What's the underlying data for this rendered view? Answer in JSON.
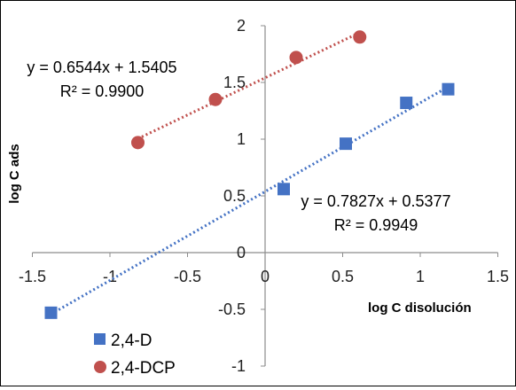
{
  "chart_data": {
    "type": "scatter",
    "title": "",
    "xlabel": "log C disolución",
    "ylabel": "log C ads",
    "xlim": [
      -1.5,
      1.5
    ],
    "ylim": [
      -1,
      2
    ],
    "xticks": [
      -1.5,
      -1,
      -0.5,
      0,
      0.5,
      1,
      1.5
    ],
    "yticks": [
      -1,
      -0.5,
      0,
      0.5,
      1,
      1.5,
      2
    ],
    "xtick_labels": [
      "-1.5",
      "-1",
      "-0.5",
      "0",
      "0.5",
      "1",
      "1.5"
    ],
    "ytick_labels": [
      "-1",
      "-0.5",
      "0",
      "0.5",
      "1",
      "1.5",
      "2"
    ],
    "grid": false,
    "legend_position": "bottom-left",
    "series": [
      {
        "name": "2,4-D",
        "marker": "square",
        "color": "#4472C4",
        "points": [
          {
            "x": -1.38,
            "y": -0.53
          },
          {
            "x": 0.12,
            "y": 0.56
          },
          {
            "x": 0.52,
            "y": 0.96
          },
          {
            "x": 0.91,
            "y": 1.32
          },
          {
            "x": 1.18,
            "y": 1.44
          }
        ],
        "trendline": {
          "slope": 0.7827,
          "intercept": 0.5377,
          "x_range": [
            -1.38,
            1.18
          ],
          "equation": "y = 0.7827x + 0.5377",
          "r2": "R² = 0.9949"
        }
      },
      {
        "name": "2,4-DCP",
        "marker": "circle",
        "color": "#C0504D",
        "points": [
          {
            "x": -0.82,
            "y": 0.97
          },
          {
            "x": -0.32,
            "y": 1.35
          },
          {
            "x": 0.2,
            "y": 1.72
          },
          {
            "x": 0.61,
            "y": 1.9
          }
        ],
        "trendline": {
          "slope": 0.6544,
          "intercept": 1.5405,
          "x_range": [
            -0.82,
            0.61
          ],
          "equation": "y = 0.6544x + 1.5405",
          "r2": "R² = 0.9900"
        }
      }
    ]
  }
}
